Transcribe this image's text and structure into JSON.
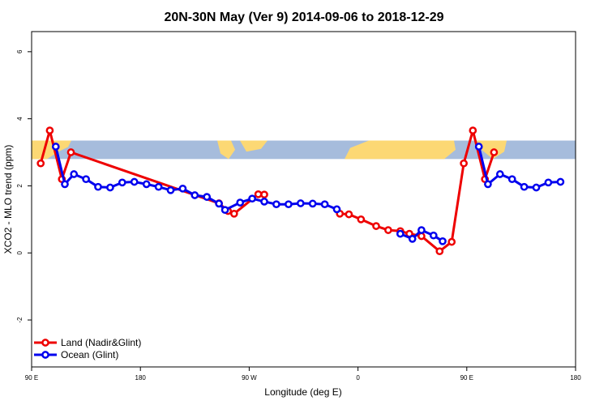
{
  "chart_data": {
    "type": "line",
    "title": "20N-30N May (Ver 9)   2014-09-06 to 2018-12-29",
    "xlabel": "Longitude (deg E)",
    "ylabel": "XCO2 - MLO trend (ppm)",
    "xlim": [
      90,
      540
    ],
    "ylim": [
      -3.4,
      6.6
    ],
    "x_ticks": [
      {
        "value": 90,
        "label": "90 E"
      },
      {
        "value": 180,
        "label": "180"
      },
      {
        "value": 270,
        "label": "90 W"
      },
      {
        "value": 360,
        "label": "0"
      },
      {
        "value": 450,
        "label": "90 E"
      },
      {
        "value": 540,
        "label": "180"
      }
    ],
    "y_ticks": [
      {
        "value": -2,
        "label": "-2"
      },
      {
        "value": 0,
        "label": "0"
      },
      {
        "value": 2,
        "label": "2"
      },
      {
        "value": 4,
        "label": "4"
      },
      {
        "value": 6,
        "label": "6"
      }
    ],
    "map_strip": {
      "y_low": 2.8,
      "y_high": 3.35,
      "ocean_color": "#a6bcdc",
      "land_color": "#fcd874"
    },
    "legend_position": "bottom-left",
    "series": [
      {
        "name": "Land (Nadir&Glint)",
        "color": "#ee0000",
        "points": [
          [
            97.5,
            2.67
          ],
          [
            105,
            3.65
          ],
          [
            115,
            2.2
          ],
          [
            122.5,
            3.0
          ],
          [
            245,
            1.48
          ],
          [
            252.5,
            1.25
          ],
          [
            257.5,
            1.17
          ],
          [
            277.5,
            1.75
          ],
          [
            282.5,
            1.74
          ]
        ],
        "points2": [
          [
            345,
            1.17
          ],
          [
            352.5,
            1.15
          ],
          [
            362.5,
            1.0
          ],
          [
            375,
            0.8
          ],
          [
            385,
            0.68
          ],
          [
            395,
            0.65
          ],
          [
            402.5,
            0.57
          ],
          [
            412.5,
            0.5
          ],
          [
            427.5,
            0.05
          ],
          [
            437.5,
            0.33
          ],
          [
            447.5,
            2.67
          ],
          [
            455,
            3.65
          ],
          [
            465,
            2.2
          ],
          [
            472.5,
            3.0
          ]
        ]
      },
      {
        "name": "Ocean (Glint)",
        "color": "#0000ee",
        "points": [
          [
            110,
            3.17
          ],
          [
            117.5,
            2.05
          ],
          [
            125,
            2.35
          ],
          [
            135,
            2.2
          ],
          [
            145,
            1.97
          ],
          [
            155,
            1.95
          ],
          [
            165,
            2.1
          ],
          [
            175,
            2.12
          ],
          [
            185,
            2.05
          ],
          [
            195,
            1.97
          ],
          [
            205,
            1.87
          ],
          [
            215,
            1.92
          ],
          [
            225,
            1.72
          ],
          [
            235,
            1.67
          ],
          [
            245,
            1.47
          ],
          [
            250,
            1.28
          ],
          [
            262.5,
            1.5
          ],
          [
            272.5,
            1.62
          ],
          [
            282.5,
            1.53
          ],
          [
            292.5,
            1.45
          ],
          [
            302.5,
            1.45
          ],
          [
            312.5,
            1.48
          ],
          [
            322.5,
            1.47
          ],
          [
            332.5,
            1.45
          ],
          [
            342.5,
            1.3
          ]
        ],
        "points2": [
          [
            395,
            0.57
          ],
          [
            405,
            0.42
          ],
          [
            412.5,
            0.68
          ],
          [
            422.5,
            0.52
          ],
          [
            430,
            0.35
          ]
        ],
        "points3": [
          [
            460,
            3.17
          ],
          [
            467.5,
            2.05
          ],
          [
            477.5,
            2.35
          ],
          [
            487.5,
            2.2
          ],
          [
            497.5,
            1.97
          ],
          [
            507.5,
            1.95
          ],
          [
            517.5,
            2.1
          ],
          [
            527.5,
            2.12
          ]
        ]
      }
    ]
  }
}
